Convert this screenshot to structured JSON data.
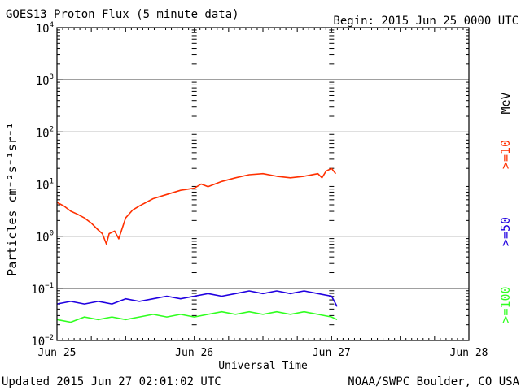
{
  "chart_data": {
    "type": "line",
    "title": "GOES13 Proton Flux (5 minute data)",
    "begin_label": "Begin: 2015 Jun 25 0000 UTC",
    "xlabel": "Universal Time",
    "ylabel": "Particles cm⁻²s⁻¹sr⁻¹",
    "unit_label": "MeV",
    "updated_label": "Updated 2015 Jun 27 02:01:02 UTC",
    "credit_label": "NOAA/SWPC Boulder, CO USA",
    "x_unit": "days since 2015 Jun 25 00:00 UTC",
    "xlim": [
      0,
      3
    ],
    "ylim_log10": [
      -2,
      4
    ],
    "x_tick_positions": [
      0,
      1,
      2,
      3
    ],
    "x_tick_labels": [
      "Jun 25",
      "Jun 26",
      "Jun 27",
      "Jun 28"
    ],
    "y_tick_exponents": [
      -2,
      -1,
      0,
      1,
      2,
      3,
      4
    ],
    "y_tick_base": "10",
    "solid_gridlines_log10": [
      -1,
      0,
      2,
      3
    ],
    "dashed_gridlines_log10": [
      1
    ],
    "series": [
      {
        "name": ">=10",
        "color": "#ff3000",
        "x": [
          0.0,
          0.05,
          0.1,
          0.15,
          0.2,
          0.25,
          0.3,
          0.33,
          0.36,
          0.38,
          0.42,
          0.45,
          0.5,
          0.55,
          0.6,
          0.7,
          0.8,
          0.9,
          1.0,
          1.05,
          1.1,
          1.2,
          1.3,
          1.4,
          1.5,
          1.6,
          1.7,
          1.8,
          1.9,
          1.93,
          1.96,
          2.0,
          2.03
        ],
        "values_log10": [
          0.65,
          0.58,
          0.48,
          0.42,
          0.35,
          0.25,
          0.12,
          0.05,
          -0.15,
          0.05,
          0.1,
          -0.05,
          0.35,
          0.5,
          0.58,
          0.72,
          0.8,
          0.88,
          0.92,
          1.0,
          0.95,
          1.05,
          1.12,
          1.18,
          1.2,
          1.15,
          1.12,
          1.15,
          1.2,
          1.12,
          1.25,
          1.3,
          1.2
        ]
      },
      {
        "name": ">=50",
        "color": "#2000e0",
        "x": [
          0.0,
          0.1,
          0.2,
          0.3,
          0.4,
          0.5,
          0.6,
          0.7,
          0.8,
          0.9,
          1.0,
          1.1,
          1.2,
          1.3,
          1.4,
          1.5,
          1.6,
          1.7,
          1.8,
          1.9,
          2.0,
          2.04
        ],
        "values_log10": [
          -1.3,
          -1.25,
          -1.3,
          -1.25,
          -1.3,
          -1.2,
          -1.25,
          -1.2,
          -1.15,
          -1.2,
          -1.15,
          -1.1,
          -1.15,
          -1.1,
          -1.05,
          -1.1,
          -1.05,
          -1.1,
          -1.05,
          -1.1,
          -1.15,
          -1.35
        ]
      },
      {
        "name": ">=100",
        "color": "#30ff20",
        "x": [
          0.0,
          0.1,
          0.2,
          0.3,
          0.4,
          0.5,
          0.6,
          0.7,
          0.8,
          0.9,
          1.0,
          1.1,
          1.2,
          1.3,
          1.4,
          1.5,
          1.6,
          1.7,
          1.8,
          1.9,
          2.0,
          2.04
        ],
        "values_log10": [
          -1.6,
          -1.65,
          -1.55,
          -1.6,
          -1.55,
          -1.6,
          -1.55,
          -1.5,
          -1.55,
          -1.5,
          -1.55,
          -1.5,
          -1.45,
          -1.5,
          -1.45,
          -1.5,
          -1.45,
          -1.5,
          -1.45,
          -1.5,
          -1.55,
          -1.6
        ]
      }
    ]
  }
}
